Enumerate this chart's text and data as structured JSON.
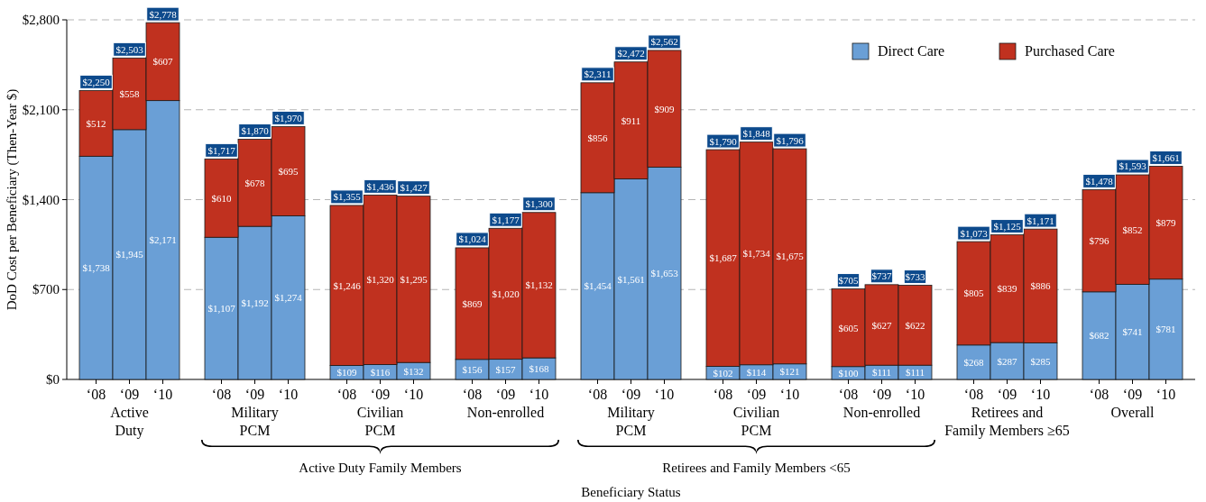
{
  "chart_data": {
    "type": "bar",
    "stacked": true,
    "ylabel": "DoD Cost per Beneficiary (Then-Year $)",
    "categories": [
      "‘08",
      "‘09",
      "‘10",
      "‘08",
      "‘09",
      "‘10",
      "‘08",
      "‘09",
      "‘10",
      "‘08",
      "‘09",
      "‘10",
      "‘08",
      "‘09",
      "‘10",
      "‘08",
      "‘09",
      "‘10",
      "‘08",
      "‘09",
      "‘10",
      "‘08",
      "‘09",
      "‘10",
      "‘08",
      "‘09",
      "‘10"
    ],
    "series": [
      {
        "name": "Direct Care",
        "color": "#6a9fd6",
        "values": [
          1738,
          1945,
          2171,
          1107,
          1192,
          1274,
          109,
          116,
          132,
          156,
          157,
          168,
          1454,
          1561,
          1653,
          102,
          114,
          121,
          100,
          111,
          111,
          268,
          287,
          285,
          682,
          741,
          781
        ],
        "value_labels": [
          "$1,738",
          "$1,945",
          "$2,171",
          "$1,107",
          "$1,192",
          "$1,274",
          "$109",
          "$116",
          "$132",
          "$156",
          "$157",
          "$168",
          "$1,454",
          "$1,561",
          "$1,653",
          "$102",
          "$114",
          "$121",
          "$100",
          "$111",
          "$111",
          "$268",
          "$287",
          "$285",
          "$682",
          "$741",
          "$781"
        ]
      },
      {
        "name": "Purchased Care",
        "color": "#c0311f",
        "values": [
          512,
          558,
          607,
          610,
          678,
          695,
          1246,
          1320,
          1295,
          869,
          1020,
          1132,
          856,
          911,
          909,
          1687,
          1734,
          1675,
          605,
          627,
          622,
          805,
          839,
          886,
          796,
          852,
          879
        ],
        "value_labels": [
          "$512",
          "$558",
          "$607",
          "$610",
          "$678",
          "$695",
          "$1,246",
          "$1,320",
          "$1,295",
          "$869",
          "$1,020",
          "$1,132",
          "$856",
          "$911",
          "$909",
          "$1,687",
          "$1,734",
          "$1,675",
          "$605",
          "$627",
          "$622",
          "$805",
          "$839",
          "$886",
          "$796",
          "$852",
          "$879"
        ]
      }
    ],
    "totals": [
      "$2,250",
      "$2,503",
      "$2,778",
      "$1,717",
      "$1,870",
      "$1,970",
      "$1,355",
      "$1,436",
      "$1,427",
      "$1,024",
      "$1,177",
      "$1,300",
      "$2,311",
      "$2,472",
      "$2,562",
      "$1,790",
      "$1,848",
      "$1,796",
      "$705",
      "$737",
      "$733",
      "$1,073",
      "$1,125",
      "$1,171",
      "$1,478",
      "$1,593",
      "$1,661"
    ],
    "ylim": [
      0,
      2800
    ],
    "yticks": [
      {
        "value": 0,
        "label": "$0"
      },
      {
        "value": 700,
        "label": "$700"
      },
      {
        "value": 1400,
        "label": "$1,400"
      },
      {
        "value": 2100,
        "label": "$2,100"
      },
      {
        "value": 2800,
        "label": "$2,800"
      }
    ],
    "grid": "y",
    "legend": "top right",
    "annotations": [
      "Active\nDuty",
      "Military\nPCM",
      "Civilian\nPCM",
      "Non-enrolled",
      "Military\nPCM",
      "Civilian\nPCM",
      "Non-enrolled",
      "Retirees and\nFamily Members ≥65",
      "Overall",
      "Active Duty Family Members",
      "Retirees and Family Members <65",
      "Beneficiary Status"
    ]
  }
}
